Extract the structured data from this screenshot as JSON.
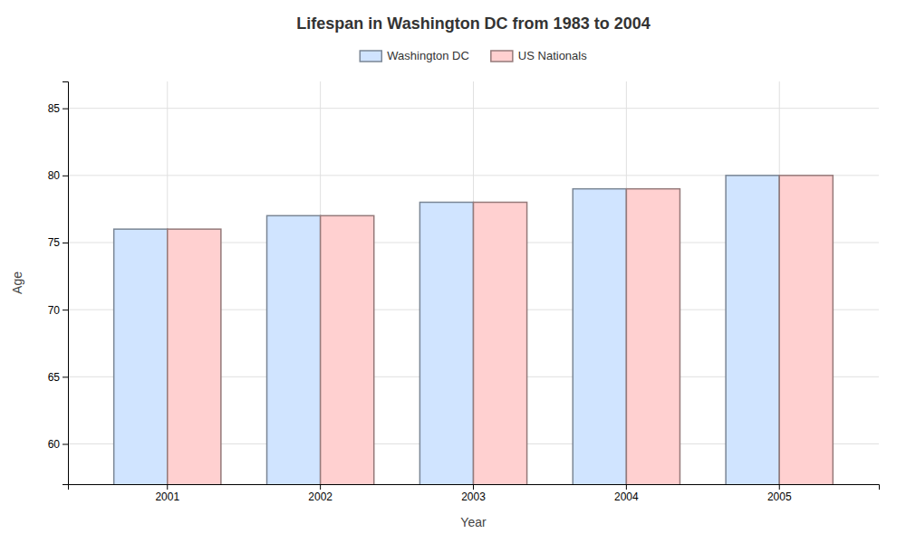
{
  "chart_data": {
    "type": "bar",
    "title": "Lifespan in Washington DC from 1983 to 2004",
    "x_label": "Year",
    "y_label": "Age",
    "categories": [
      "2001",
      "2002",
      "2003",
      "2004",
      "2005"
    ],
    "series": [
      {
        "name": "Washington DC",
        "color": "#d0e4ff",
        "values": [
          76,
          77,
          78,
          79,
          80
        ]
      },
      {
        "name": "US Nationals",
        "color": "#ffd0d0",
        "values": [
          76,
          77,
          78,
          79,
          80
        ]
      }
    ],
    "ylim": [
      57,
      87
    ],
    "yticks": [
      60,
      65,
      70,
      75,
      80,
      85
    ],
    "grid": true,
    "legend": "top"
  }
}
